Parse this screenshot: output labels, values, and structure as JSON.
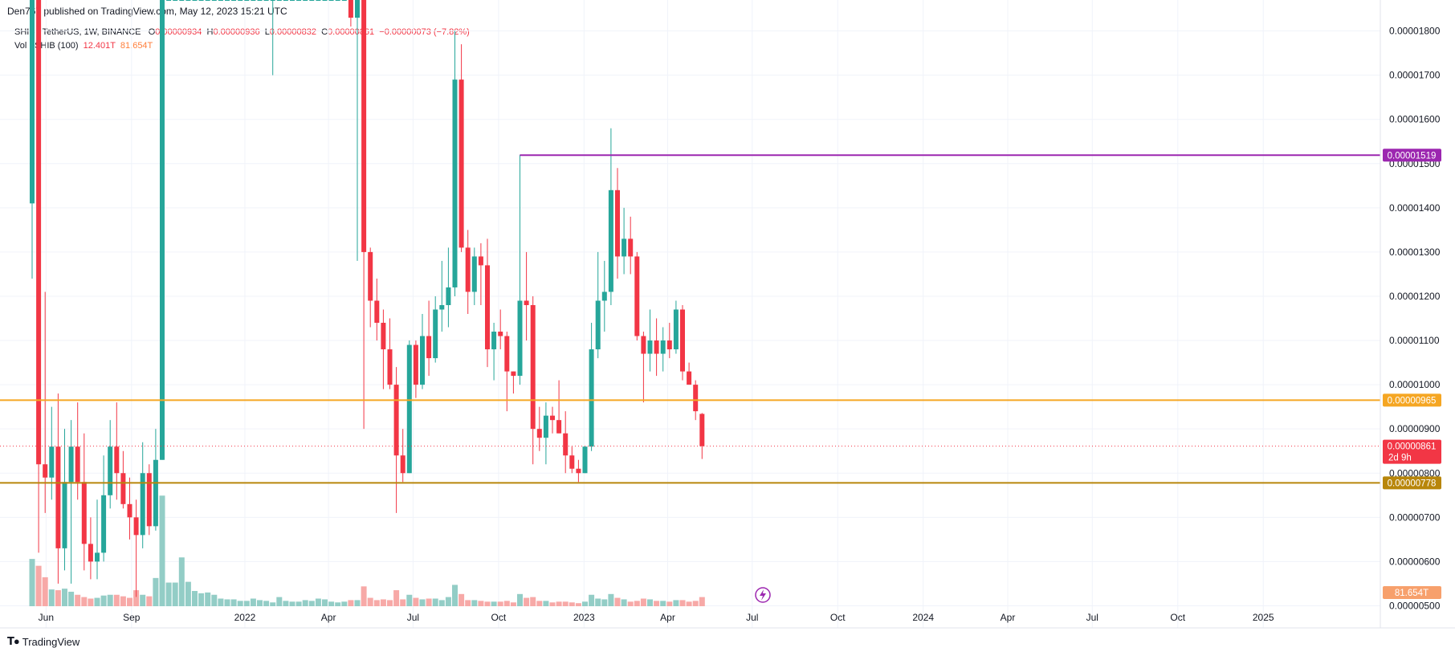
{
  "header": {
    "published": "Den767 published on TradingView.com, May 12, 2023 15:21 UTC"
  },
  "legend": {
    "symbol": "SHIB / TetherUS, 1W, BINANCE",
    "open_label": "O",
    "open": "0.00000934",
    "high_label": "H",
    "high": "0.00000936",
    "low_label": "L",
    "low": "0.00000832",
    "close_label": "C",
    "close": "0.00000861",
    "change": "−0.00000073 (−7.82%)",
    "vol_label": "Vol · SHIB (100)",
    "vol_value1": "12.401T",
    "vol_value2": "81.654T"
  },
  "footer": {
    "brand": "TradingView",
    "logo_icon": "tradingview-logo-icon"
  },
  "colors": {
    "up": "#26a69a",
    "down": "#f23645",
    "vol_up": "#93cdc6",
    "vol_down": "#f7a9a7",
    "resistance_line": "#9c27b0",
    "level_upper": "#f5a623",
    "level_lower": "#b8860b",
    "last_price_badge": "#f23645",
    "volume_badge": "#f7a06c"
  },
  "chart_data": {
    "type": "candlestick",
    "timeframe": "1W",
    "x_tick_labels": [
      "Jun",
      "Sep",
      "2022",
      "Apr",
      "Jul",
      "Oct",
      "2023",
      "Apr",
      "Jul",
      "Oct",
      "2024",
      "Apr",
      "Jul",
      "Oct",
      "2025"
    ],
    "y_tick_labels": [
      "0.00000500",
      "0.00000600",
      "0.00000700",
      "0.00000800",
      "0.00000900",
      "0.00001000",
      "0.00001100",
      "0.00001200",
      "0.00001300",
      "0.00001400",
      "0.00001500",
      "0.00001600",
      "0.00001700",
      "0.00001800"
    ],
    "y_range": [
      4.5e-06,
      1.87e-05
    ],
    "horizontal_levels": [
      {
        "value": 1.519e-05,
        "label": "0.00001519",
        "color": "#9c27b0",
        "from_date": "2022-10-24"
      },
      {
        "value": 9.65e-06,
        "label": "0.00000965",
        "color": "#f5a623"
      },
      {
        "value": 7.78e-06,
        "label": "0.00000778",
        "color": "#b8860b"
      }
    ],
    "last_price": {
      "value": 8.61e-06,
      "label": "0.00000861",
      "countdown": "2d 9h"
    },
    "last_volume_label": "81.654T",
    "candles": [
      {
        "t": "2021-05-17",
        "o": 1.41e-05,
        "h": 1.87e-05,
        "l": 1.24e-05,
        "c": 1.87e-05,
        "v": 0.62
      },
      {
        "t": "2021-05-24",
        "o": 1.87e-05,
        "h": 1.87e-05,
        "l": 6.2e-06,
        "c": 8.2e-06,
        "v": 0.53
      },
      {
        "t": "2021-05-31",
        "o": 8.2e-06,
        "h": 1.21e-05,
        "l": 7.1e-06,
        "c": 7.9e-06,
        "v": 0.38
      },
      {
        "t": "2021-06-07",
        "o": 7.9e-06,
        "h": 9.5e-06,
        "l": 7.4e-06,
        "c": 8.6e-06,
        "v": 0.22
      },
      {
        "t": "2021-06-14",
        "o": 8.6e-06,
        "h": 9.8e-06,
        "l": 5.5e-06,
        "c": 6.3e-06,
        "v": 0.21
      },
      {
        "t": "2021-06-21",
        "o": 6.3e-06,
        "h": 9e-06,
        "l": 5.8e-06,
        "c": 7.8e-06,
        "v": 0.23
      },
      {
        "t": "2021-06-28",
        "o": 7.8e-06,
        "h": 9.2e-06,
        "l": 5.5e-06,
        "c": 8.6e-06,
        "v": 0.19
      },
      {
        "t": "2021-07-05",
        "o": 8.6e-06,
        "h": 9.6e-06,
        "l": 7.4e-06,
        "c": 7.8e-06,
        "v": 0.15
      },
      {
        "t": "2021-07-12",
        "o": 7.8e-06,
        "h": 8.9e-06,
        "l": 5.8e-06,
        "c": 6.4e-06,
        "v": 0.12
      },
      {
        "t": "2021-07-19",
        "o": 6.4e-06,
        "h": 7e-06,
        "l": 5.6e-06,
        "c": 6e-06,
        "v": 0.1
      },
      {
        "t": "2021-07-26",
        "o": 6e-06,
        "h": 7.4e-06,
        "l": 5.6e-06,
        "c": 6.2e-06,
        "v": 0.11
      },
      {
        "t": "2021-08-02",
        "o": 6.2e-06,
        "h": 8.4e-06,
        "l": 6e-06,
        "c": 7.5e-06,
        "v": 0.14
      },
      {
        "t": "2021-08-09",
        "o": 7.5e-06,
        "h": 9.2e-06,
        "l": 7.2e-06,
        "c": 8.6e-06,
        "v": 0.15
      },
      {
        "t": "2021-08-16",
        "o": 8.6e-06,
        "h": 9.6e-06,
        "l": 7.4e-06,
        "c": 8e-06,
        "v": 0.15
      },
      {
        "t": "2021-08-23",
        "o": 8e-06,
        "h": 8.5e-06,
        "l": 7.2e-06,
        "c": 7.3e-06,
        "v": 0.13
      },
      {
        "t": "2021-08-30",
        "o": 7.3e-06,
        "h": 7.9e-06,
        "l": 6.5e-06,
        "c": 7e-06,
        "v": 0.11
      },
      {
        "t": "2021-09-06",
        "o": 7e-06,
        "h": 7.4e-06,
        "l": 5.2e-06,
        "c": 6.6e-06,
        "v": 0.21
      },
      {
        "t": "2021-09-13",
        "o": 6.6e-06,
        "h": 8.7e-06,
        "l": 6.3e-06,
        "c": 8e-06,
        "v": 0.15
      },
      {
        "t": "2021-09-20",
        "o": 8e-06,
        "h": 8.2e-06,
        "l": 6.6e-06,
        "c": 6.8e-06,
        "v": 0.13
      },
      {
        "t": "2021-09-27",
        "o": 6.8e-06,
        "h": 9e-06,
        "l": 6.7e-06,
        "c": 8.3e-06,
        "v": 0.37
      },
      {
        "t": "2021-10-04",
        "o": 8.3e-06,
        "h": 1.87e-05,
        "l": 8.3e-06,
        "c": 1.87e-05,
        "v": 1.45
      },
      {
        "t": "2021-10-11",
        "o": 1.87e-05,
        "h": 1.87e-05,
        "l": 1.87e-05,
        "c": 1.87e-05,
        "v": 0.31
      },
      {
        "t": "2021-10-18",
        "o": 1.87e-05,
        "h": 1.87e-05,
        "l": 1.87e-05,
        "c": 1.87e-05,
        "v": 0.31
      },
      {
        "t": "2021-10-25",
        "o": 1.87e-05,
        "h": 1.87e-05,
        "l": 1.87e-05,
        "c": 1.87e-05,
        "v": 0.64
      },
      {
        "t": "2021-11-01",
        "o": 1.87e-05,
        "h": 1.87e-05,
        "l": 1.87e-05,
        "c": 1.87e-05,
        "v": 0.32
      },
      {
        "t": "2021-11-08",
        "o": 1.87e-05,
        "h": 1.87e-05,
        "l": 1.87e-05,
        "c": 1.87e-05,
        "v": 0.2
      },
      {
        "t": "2021-11-15",
        "o": 1.87e-05,
        "h": 1.87e-05,
        "l": 1.87e-05,
        "c": 1.87e-05,
        "v": 0.17
      },
      {
        "t": "2021-11-22",
        "o": 1.87e-05,
        "h": 1.87e-05,
        "l": 1.87e-05,
        "c": 1.87e-05,
        "v": 0.18
      },
      {
        "t": "2021-11-29",
        "o": 1.87e-05,
        "h": 1.87e-05,
        "l": 1.87e-05,
        "c": 1.87e-05,
        "v": 0.15
      },
      {
        "t": "2021-12-06",
        "o": 1.87e-05,
        "h": 1.87e-05,
        "l": 1.87e-05,
        "c": 1.87e-05,
        "v": 0.1
      },
      {
        "t": "2021-12-13",
        "o": 1.87e-05,
        "h": 1.87e-05,
        "l": 1.87e-05,
        "c": 1.87e-05,
        "v": 0.09
      },
      {
        "t": "2021-12-20",
        "o": 1.87e-05,
        "h": 1.87e-05,
        "l": 1.87e-05,
        "c": 1.87e-05,
        "v": 0.09
      },
      {
        "t": "2021-12-27",
        "o": 1.87e-05,
        "h": 1.87e-05,
        "l": 1.87e-05,
        "c": 1.87e-05,
        "v": 0.07
      },
      {
        "t": "2022-01-03",
        "o": 1.87e-05,
        "h": 1.87e-05,
        "l": 1.87e-05,
        "c": 1.87e-05,
        "v": 0.07
      },
      {
        "t": "2022-01-10",
        "o": 1.87e-05,
        "h": 1.87e-05,
        "l": 1.87e-05,
        "c": 1.87e-05,
        "v": 0.1
      },
      {
        "t": "2022-01-17",
        "o": 1.87e-05,
        "h": 1.87e-05,
        "l": 1.87e-05,
        "c": 1.87e-05,
        "v": 0.08
      },
      {
        "t": "2022-01-24",
        "o": 1.87e-05,
        "h": 1.87e-05,
        "l": 1.87e-05,
        "c": 1.87e-05,
        "v": 0.07
      },
      {
        "t": "2022-01-31",
        "o": 1.87e-05,
        "h": 1.87e-05,
        "l": 1.7e-05,
        "c": 1.87e-05,
        "v": 0.05
      },
      {
        "t": "2022-02-07",
        "o": 1.87e-05,
        "h": 1.87e-05,
        "l": 1.87e-05,
        "c": 1.87e-05,
        "v": 0.12
      },
      {
        "t": "2022-02-14",
        "o": 1.87e-05,
        "h": 1.87e-05,
        "l": 1.87e-05,
        "c": 1.87e-05,
        "v": 0.07
      },
      {
        "t": "2022-02-21",
        "o": 1.87e-05,
        "h": 1.87e-05,
        "l": 1.87e-05,
        "c": 1.87e-05,
        "v": 0.06
      },
      {
        "t": "2022-02-28",
        "o": 1.87e-05,
        "h": 1.87e-05,
        "l": 1.87e-05,
        "c": 1.87e-05,
        "v": 0.06
      },
      {
        "t": "2022-03-07",
        "o": 1.87e-05,
        "h": 1.87e-05,
        "l": 1.87e-05,
        "c": 1.87e-05,
        "v": 0.08
      },
      {
        "t": "2022-03-14",
        "o": 1.87e-05,
        "h": 1.87e-05,
        "l": 1.87e-05,
        "c": 1.87e-05,
        "v": 0.07
      },
      {
        "t": "2022-03-21",
        "o": 1.87e-05,
        "h": 1.87e-05,
        "l": 1.87e-05,
        "c": 1.87e-05,
        "v": 0.1
      },
      {
        "t": "2022-03-28",
        "o": 1.87e-05,
        "h": 1.87e-05,
        "l": 1.87e-05,
        "c": 1.87e-05,
        "v": 0.09
      },
      {
        "t": "2022-04-04",
        "o": 1.87e-05,
        "h": 1.87e-05,
        "l": 1.87e-05,
        "c": 1.87e-05,
        "v": 0.06
      },
      {
        "t": "2022-04-11",
        "o": 1.87e-05,
        "h": 1.87e-05,
        "l": 1.87e-05,
        "c": 1.87e-05,
        "v": 0.05
      },
      {
        "t": "2022-04-18",
        "o": 1.87e-05,
        "h": 1.87e-05,
        "l": 1.87e-05,
        "c": 1.87e-05,
        "v": 0.06
      },
      {
        "t": "2022-04-25",
        "o": 1.87e-05,
        "h": 1.87e-05,
        "l": 1.81e-05,
        "c": 1.83e-05,
        "v": 0.08
      },
      {
        "t": "2022-05-02",
        "o": 1.83e-05,
        "h": 1.87e-05,
        "l": 1.28e-05,
        "c": 1.87e-05,
        "v": 0.08
      },
      {
        "t": "2022-05-09",
        "o": 1.87e-05,
        "h": 1.87e-05,
        "l": 9e-06,
        "c": 1.3e-05,
        "v": 0.26
      },
      {
        "t": "2022-05-16",
        "o": 1.3e-05,
        "h": 1.31e-05,
        "l": 1.13e-05,
        "c": 1.19e-05,
        "v": 0.11
      },
      {
        "t": "2022-05-23",
        "o": 1.19e-05,
        "h": 1.24e-05,
        "l": 1.1e-05,
        "c": 1.14e-05,
        "v": 0.08
      },
      {
        "t": "2022-05-30",
        "o": 1.14e-05,
        "h": 1.17e-05,
        "l": 9.9e-06,
        "c": 1.08e-05,
        "v": 0.09
      },
      {
        "t": "2022-06-06",
        "o": 1.08e-05,
        "h": 1.15e-05,
        "l": 9.9e-06,
        "c": 1e-05,
        "v": 0.08
      },
      {
        "t": "2022-06-13",
        "o": 1e-05,
        "h": 1.04e-05,
        "l": 7.1e-06,
        "c": 8.4e-06,
        "v": 0.21
      },
      {
        "t": "2022-06-20",
        "o": 8.4e-06,
        "h": 9e-06,
        "l": 7.8e-06,
        "c": 8e-06,
        "v": 0.09
      },
      {
        "t": "2022-06-27",
        "o": 8e-06,
        "h": 1.1e-05,
        "l": 8e-06,
        "c": 1.09e-05,
        "v": 0.15
      },
      {
        "t": "2022-07-04",
        "o": 1.09e-05,
        "h": 1.1e-05,
        "l": 9.7e-06,
        "c": 1e-05,
        "v": 0.11
      },
      {
        "t": "2022-07-11",
        "o": 1e-05,
        "h": 1.16e-05,
        "l": 9.9e-06,
        "c": 1.11e-05,
        "v": 0.09
      },
      {
        "t": "2022-07-18",
        "o": 1.11e-05,
        "h": 1.19e-05,
        "l": 1.02e-05,
        "c": 1.06e-05,
        "v": 0.1
      },
      {
        "t": "2022-07-25",
        "o": 1.06e-05,
        "h": 1.2e-05,
        "l": 1.05e-05,
        "c": 1.17e-05,
        "v": 0.1
      },
      {
        "t": "2022-08-01",
        "o": 1.17e-05,
        "h": 1.28e-05,
        "l": 1.12e-05,
        "c": 1.18e-05,
        "v": 0.08
      },
      {
        "t": "2022-08-08",
        "o": 1.18e-05,
        "h": 1.31e-05,
        "l": 1.13e-05,
        "c": 1.22e-05,
        "v": 0.12
      },
      {
        "t": "2022-08-15",
        "o": 1.22e-05,
        "h": 1.8e-05,
        "l": 1.2e-05,
        "c": 1.69e-05,
        "v": 0.28
      },
      {
        "t": "2022-08-22",
        "o": 1.69e-05,
        "h": 1.77e-05,
        "l": 1.3e-05,
        "c": 1.31e-05,
        "v": 0.16
      },
      {
        "t": "2022-08-29",
        "o": 1.31e-05,
        "h": 1.35e-05,
        "l": 1.16e-05,
        "c": 1.21e-05,
        "v": 0.08
      },
      {
        "t": "2022-09-05",
        "o": 1.21e-05,
        "h": 1.31e-05,
        "l": 1.18e-05,
        "c": 1.29e-05,
        "v": 0.08
      },
      {
        "t": "2022-09-12",
        "o": 1.29e-05,
        "h": 1.32e-05,
        "l": 1.18e-05,
        "c": 1.27e-05,
        "v": 0.07
      },
      {
        "t": "2022-09-19",
        "o": 1.27e-05,
        "h": 1.33e-05,
        "l": 1.04e-05,
        "c": 1.08e-05,
        "v": 0.06
      },
      {
        "t": "2022-09-26",
        "o": 1.08e-05,
        "h": 1.14e-05,
        "l": 1.01e-05,
        "c": 1.12e-05,
        "v": 0.06
      },
      {
        "t": "2022-10-03",
        "o": 1.12e-05,
        "h": 1.17e-05,
        "l": 1.08e-05,
        "c": 1.11e-05,
        "v": 0.06
      },
      {
        "t": "2022-10-10",
        "o": 1.11e-05,
        "h": 1.12e-05,
        "l": 9.4e-06,
        "c": 1.03e-05,
        "v": 0.07
      },
      {
        "t": "2022-10-17",
        "o": 1.03e-05,
        "h": 1.03e-05,
        "l": 9.8e-06,
        "c": 1.02e-05,
        "v": 0.05
      },
      {
        "t": "2022-10-24",
        "o": 1.02e-05,
        "h": 1.52e-05,
        "l": 1e-05,
        "c": 1.19e-05,
        "v": 0.16
      },
      {
        "t": "2022-10-31",
        "o": 1.19e-05,
        "h": 1.3e-05,
        "l": 1.1e-05,
        "c": 1.18e-05,
        "v": 0.11
      },
      {
        "t": "2022-11-07",
        "o": 1.18e-05,
        "h": 1.2e-05,
        "l": 8.2e-06,
        "c": 9e-06,
        "v": 0.12
      },
      {
        "t": "2022-11-14",
        "o": 9e-06,
        "h": 9.5e-06,
        "l": 8.5e-06,
        "c": 8.8e-06,
        "v": 0.07
      },
      {
        "t": "2022-11-21",
        "o": 8.8e-06,
        "h": 9.6e-06,
        "l": 8.2e-06,
        "c": 9.3e-06,
        "v": 0.07
      },
      {
        "t": "2022-11-28",
        "o": 9.3e-06,
        "h": 9.5e-06,
        "l": 8.9e-06,
        "c": 9.2e-06,
        "v": 0.05
      },
      {
        "t": "2022-12-05",
        "o": 9.2e-06,
        "h": 1.01e-05,
        "l": 8.9e-06,
        "c": 8.9e-06,
        "v": 0.06
      },
      {
        "t": "2022-12-12",
        "o": 8.9e-06,
        "h": 9.4e-06,
        "l": 8e-06,
        "c": 8.4e-06,
        "v": 0.06
      },
      {
        "t": "2022-12-19",
        "o": 8.4e-06,
        "h": 8.6e-06,
        "l": 8e-06,
        "c": 8.1e-06,
        "v": 0.05
      },
      {
        "t": "2022-12-26",
        "o": 8.1e-06,
        "h": 8.3e-06,
        "l": 7.8e-06,
        "c": 8e-06,
        "v": 0.04
      },
      {
        "t": "2023-01-02",
        "o": 8e-06,
        "h": 8.6e-06,
        "l": 8e-06,
        "c": 8.6e-06,
        "v": 0.06
      },
      {
        "t": "2023-01-09",
        "o": 8.6e-06,
        "h": 1.14e-05,
        "l": 8.5e-06,
        "c": 1.08e-05,
        "v": 0.15
      },
      {
        "t": "2023-01-16",
        "o": 1.08e-05,
        "h": 1.3e-05,
        "l": 1.06e-05,
        "c": 1.19e-05,
        "v": 0.1
      },
      {
        "t": "2023-01-23",
        "o": 1.19e-05,
        "h": 1.28e-05,
        "l": 1.12e-05,
        "c": 1.21e-05,
        "v": 0.09
      },
      {
        "t": "2023-01-30",
        "o": 1.21e-05,
        "h": 1.58e-05,
        "l": 1.18e-05,
        "c": 1.44e-05,
        "v": 0.16
      },
      {
        "t": "2023-02-06",
        "o": 1.44e-05,
        "h": 1.49e-05,
        "l": 1.24e-05,
        "c": 1.29e-05,
        "v": 0.11
      },
      {
        "t": "2023-02-13",
        "o": 1.29e-05,
        "h": 1.4e-05,
        "l": 1.25e-05,
        "c": 1.33e-05,
        "v": 0.09
      },
      {
        "t": "2023-02-20",
        "o": 1.33e-05,
        "h": 1.38e-05,
        "l": 1.25e-05,
        "c": 1.29e-05,
        "v": 0.06
      },
      {
        "t": "2023-02-27",
        "o": 1.29e-05,
        "h": 1.3e-05,
        "l": 1.1e-05,
        "c": 1.11e-05,
        "v": 0.07
      },
      {
        "t": "2023-03-06",
        "o": 1.11e-05,
        "h": 1.12e-05,
        "l": 9.6e-06,
        "c": 1.07e-05,
        "v": 0.1
      },
      {
        "t": "2023-03-13",
        "o": 1.07e-05,
        "h": 1.17e-05,
        "l": 1.03e-05,
        "c": 1.1e-05,
        "v": 0.09
      },
      {
        "t": "2023-03-20",
        "o": 1.1e-05,
        "h": 1.15e-05,
        "l": 1.02e-05,
        "c": 1.07e-05,
        "v": 0.07
      },
      {
        "t": "2023-03-27",
        "o": 1.07e-05,
        "h": 1.13e-05,
        "l": 1.03e-05,
        "c": 1.1e-05,
        "v": 0.07
      },
      {
        "t": "2023-04-03",
        "o": 1.1e-05,
        "h": 1.14e-05,
        "l": 1.06e-05,
        "c": 1.08e-05,
        "v": 0.06
      },
      {
        "t": "2023-04-10",
        "o": 1.08e-05,
        "h": 1.19e-05,
        "l": 1.07e-05,
        "c": 1.17e-05,
        "v": 0.08
      },
      {
        "t": "2023-04-17",
        "o": 1.17e-05,
        "h": 1.18e-05,
        "l": 1.01e-05,
        "c": 1.03e-05,
        "v": 0.08
      },
      {
        "t": "2023-04-24",
        "o": 1.03e-05,
        "h": 1.05e-05,
        "l": 1e-05,
        "c": 1e-05,
        "v": 0.06
      },
      {
        "t": "2023-05-01",
        "o": 1e-05,
        "h": 1.01e-05,
        "l": 9.2e-06,
        "c": 9.4e-06,
        "v": 0.07
      },
      {
        "t": "2023-05-08",
        "o": 9.34e-06,
        "h": 9.36e-06,
        "l": 8.32e-06,
        "c": 8.61e-06,
        "v": 0.12
      }
    ]
  }
}
